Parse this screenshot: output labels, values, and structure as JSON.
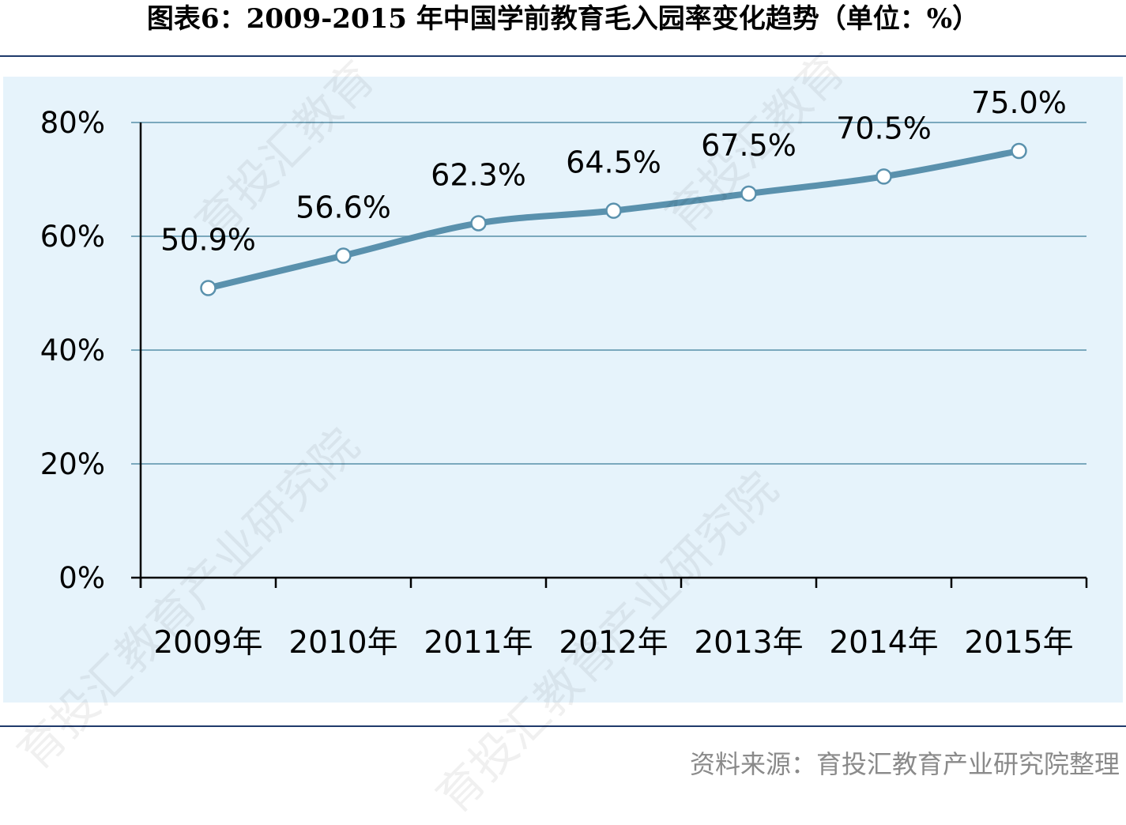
{
  "title": "图表6：2009-2015 年中国学前教育毛入园率变化趋势（单位：%）",
  "source": "资料来源：育投汇教育产业研究院整理",
  "watermark": {
    "lines": [
      "育投汇教育",
      "育投汇教育产业研究院"
    ]
  },
  "colors": {
    "plot_background": "#e6f3fb",
    "line": "#5a91ad",
    "gridline": "#7aa8bd",
    "rule": "#1f3a6b"
  },
  "chart_data": {
    "type": "line",
    "categories": [
      "2009年",
      "2010年",
      "2011年",
      "2012年",
      "2013年",
      "2014年",
      "2015年"
    ],
    "series": [
      {
        "values": [
          50.9,
          56.6,
          62.3,
          64.5,
          67.5,
          70.5,
          75.0
        ],
        "data_labels": [
          "50.9%",
          "56.6%",
          "62.3%",
          "64.5%",
          "67.5%",
          "70.5%",
          "75.0%"
        ]
      }
    ],
    "ylim": [
      0,
      80
    ],
    "yticks": [
      0,
      20,
      40,
      60,
      80
    ],
    "ytick_labels": [
      "0%",
      "20%",
      "40%",
      "60%",
      "80%"
    ],
    "grid": true,
    "legend": "none"
  }
}
